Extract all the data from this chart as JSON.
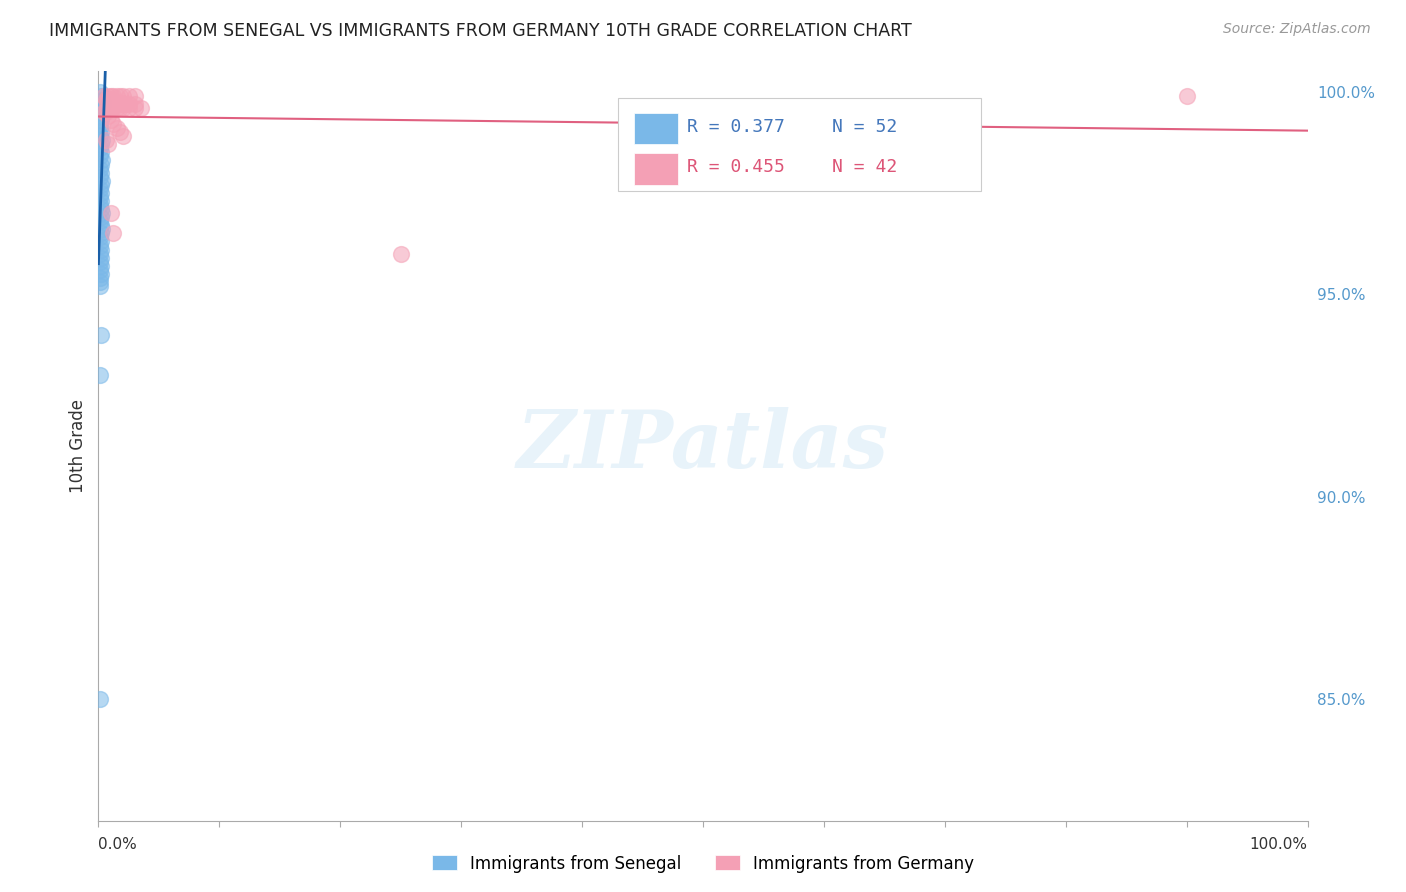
{
  "title": "IMMIGRANTS FROM SENEGAL VS IMMIGRANTS FROM GERMANY 10TH GRADE CORRELATION CHART",
  "source": "Source: ZipAtlas.com",
  "ylabel": "10th Grade",
  "legend_label_blue": "Immigrants from Senegal",
  "legend_label_pink": "Immigrants from Germany",
  "legend_R_blue": "R = 0.377",
  "legend_N_blue": "N = 52",
  "legend_R_pink": "R = 0.455",
  "legend_N_pink": "N = 42",
  "blue_color": "#7ab8e8",
  "pink_color": "#f4a0b5",
  "blue_line_color": "#1a5fa8",
  "pink_line_color": "#e06080",
  "xlim": [
    0.0,
    1.0
  ],
  "ylim": [
    0.82,
    1.005
  ],
  "ytick_positions": [
    1.0,
    0.95,
    0.9,
    0.85
  ],
  "ytick_labels": [
    "100.0%",
    "95.0%",
    "90.0%",
    "85.0%"
  ],
  "xtick_positions": [
    0.0,
    0.1,
    0.2,
    0.3,
    0.4,
    0.5,
    0.6,
    0.7,
    0.8,
    0.9,
    1.0
  ],
  "grid_color": "#cccccc",
  "background_color": "#ffffff",
  "senegal_x": [
    0.001,
    0.002,
    0.003,
    0.004,
    0.002,
    0.001,
    0.003,
    0.002,
    0.001,
    0.001,
    0.002,
    0.001,
    0.003,
    0.002,
    0.001,
    0.002,
    0.001,
    0.003,
    0.002,
    0.001,
    0.002,
    0.001,
    0.003,
    0.002,
    0.001,
    0.002,
    0.001,
    0.002,
    0.001,
    0.002,
    0.003,
    0.002,
    0.001,
    0.002,
    0.003,
    0.002,
    0.001,
    0.002,
    0.001,
    0.002,
    0.001,
    0.002,
    0.001,
    0.002,
    0.001,
    0.002,
    0.001,
    0.001,
    0.001,
    0.002,
    0.001,
    0.001
  ],
  "senegal_y": [
    1.0,
    0.999,
    0.998,
    0.997,
    0.996,
    0.995,
    0.994,
    0.993,
    0.992,
    0.991,
    0.99,
    0.989,
    0.988,
    0.987,
    0.986,
    0.985,
    0.984,
    0.983,
    0.982,
    0.981,
    0.98,
    0.979,
    0.978,
    0.977,
    0.976,
    0.975,
    0.974,
    0.973,
    0.972,
    0.971,
    0.97,
    0.969,
    0.968,
    0.967,
    0.966,
    0.965,
    0.964,
    0.963,
    0.962,
    0.961,
    0.96,
    0.959,
    0.958,
    0.957,
    0.956,
    0.955,
    0.954,
    0.953,
    0.952,
    0.94,
    0.93,
    0.85
  ],
  "germany_x": [
    0.005,
    0.008,
    0.01,
    0.012,
    0.015,
    0.018,
    0.02,
    0.025,
    0.03,
    0.006,
    0.008,
    0.01,
    0.012,
    0.015,
    0.018,
    0.02,
    0.022,
    0.025,
    0.03,
    0.007,
    0.01,
    0.012,
    0.015,
    0.018,
    0.02,
    0.025,
    0.03,
    0.035,
    0.005,
    0.006,
    0.008,
    0.01,
    0.012,
    0.015,
    0.018,
    0.02,
    0.006,
    0.008,
    0.01,
    0.012,
    0.25,
    0.9
  ],
  "germany_y": [
    0.999,
    0.999,
    0.999,
    0.999,
    0.999,
    0.999,
    0.999,
    0.999,
    0.999,
    0.998,
    0.998,
    0.998,
    0.997,
    0.997,
    0.997,
    0.997,
    0.997,
    0.997,
    0.997,
    0.996,
    0.996,
    0.996,
    0.996,
    0.996,
    0.996,
    0.996,
    0.996,
    0.996,
    0.995,
    0.995,
    0.994,
    0.993,
    0.992,
    0.991,
    0.99,
    0.989,
    0.988,
    0.987,
    0.97,
    0.965,
    0.96,
    0.999
  ]
}
